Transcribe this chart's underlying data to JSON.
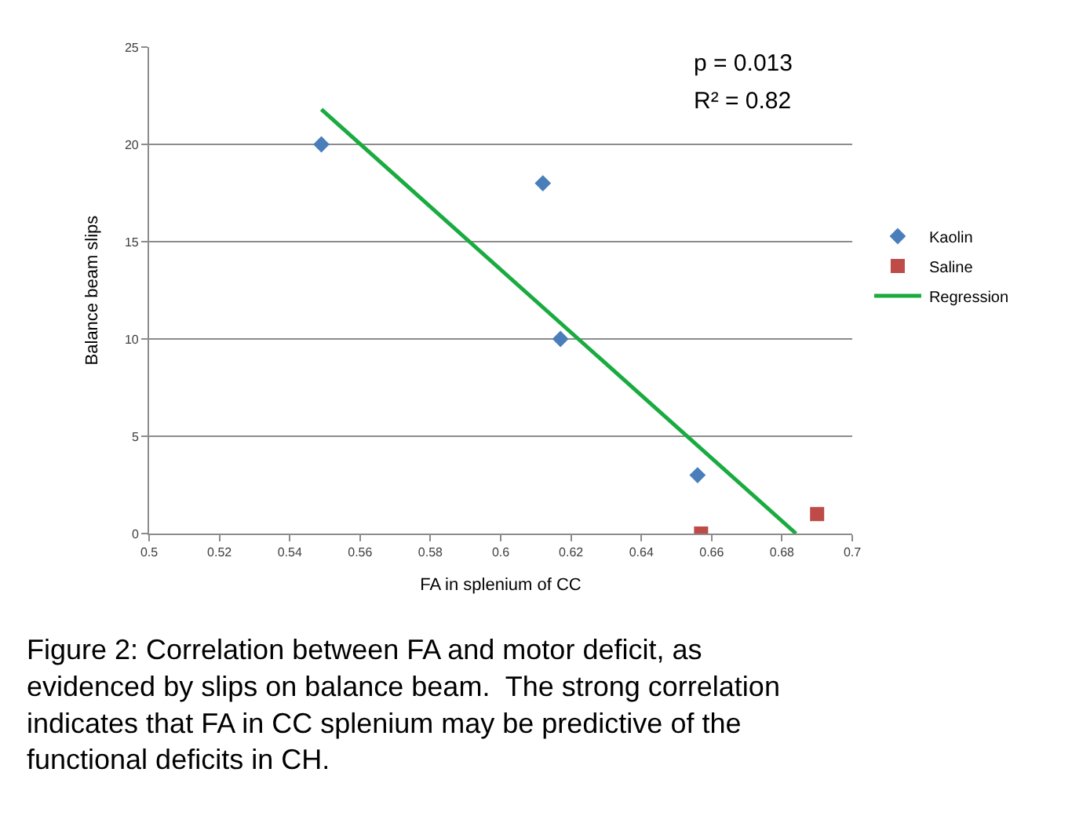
{
  "chart_data": {
    "type": "scatter",
    "xlabel": "FA in splenium of CC",
    "ylabel": "Balance beam slips",
    "xlim": [
      0.5,
      0.7
    ],
    "xticks": [
      0.5,
      0.52,
      0.54,
      0.56,
      0.58,
      0.6,
      0.62,
      0.64,
      0.66,
      0.68,
      0.7
    ],
    "ylim": [
      0,
      25
    ],
    "yticks": [
      0,
      5,
      10,
      15,
      20,
      25
    ],
    "grid": "y",
    "legend": "right",
    "series": [
      {
        "name": "Kaolin",
        "marker": "diamond",
        "color": "#4a7ebb",
        "x": [
          0.549,
          0.612,
          0.617,
          0.656
        ],
        "values": [
          20,
          18,
          10,
          3
        ]
      },
      {
        "name": "Saline",
        "marker": "square",
        "color": "#be4b48",
        "x": [
          0.657,
          0.69
        ],
        "values": [
          0,
          1
        ]
      },
      {
        "name": "Regression",
        "type": "line",
        "marker": "none",
        "line_style": "solid",
        "color": "#1aab40",
        "x": [
          0.549,
          0.684
        ],
        "values": [
          21.8,
          0
        ]
      }
    ],
    "annotations": [
      "p = 0.013",
      "R² = 0.82",
      "Figure 2: Correlation between FA and motor deficit, as evidenced by slips on balance beam.  The strong correlation indicates that FA in CC splenium may be predictive of the functional deficits in CH."
    ]
  }
}
